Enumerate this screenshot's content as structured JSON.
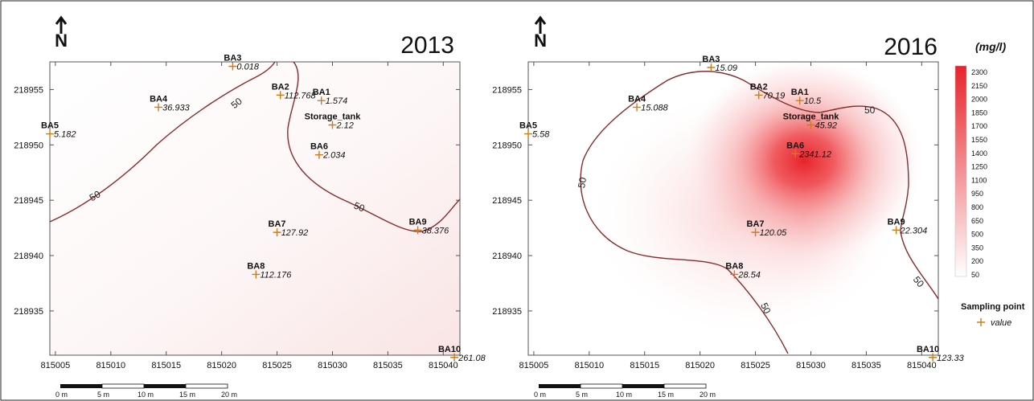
{
  "colors": {
    "contour": "#8b2a2a",
    "marker": "#d07a1a",
    "concentration_high": "#e8232a",
    "concentration_low": "#ffffff"
  },
  "icons": {
    "north_arrow": "north-arrow-icon",
    "marker": "plus-marker-icon"
  },
  "axes": {
    "x_range": [
      815004.5,
      815041.5
    ],
    "y_range": [
      218931,
      218957.5
    ],
    "x_ticks": [
      "815005",
      "815010",
      "815015",
      "815020",
      "815025",
      "815030",
      "815035",
      "815040"
    ],
    "y_ticks": [
      "218935",
      "218940",
      "218945",
      "218950",
      "218955"
    ]
  },
  "scale_bar": {
    "labels": [
      "0 m",
      "5 m",
      "10 m",
      "15 m",
      "20 m"
    ]
  },
  "maps": [
    {
      "year": "2013",
      "points": [
        {
          "name": "BA1",
          "value": "1.574",
          "x": 815029,
          "y": 218954.0
        },
        {
          "name": "BA2",
          "value": "112.768",
          "x": 815025.3,
          "y": 218954.5
        },
        {
          "name": "BA3",
          "value": "0.018",
          "x": 815021.0,
          "y": 218957.1
        },
        {
          "name": "BA4",
          "value": "36.933",
          "x": 815014.3,
          "y": 218953.4
        },
        {
          "name": "BA5",
          "value": "5.182",
          "x": 815004.5,
          "y": 218951.0
        },
        {
          "name": "Storage_tank",
          "value": "2.12",
          "x": 815030.0,
          "y": 218951.8
        },
        {
          "name": "BA6",
          "value": "2.034",
          "x": 815028.8,
          "y": 218949.1
        },
        {
          "name": "BA7",
          "value": "127.92",
          "x": 815025.0,
          "y": 218942.1
        },
        {
          "name": "BA8",
          "value": "112.176",
          "x": 815023.1,
          "y": 218938.3
        },
        {
          "name": "BA9",
          "value": "38.376",
          "x": 815037.7,
          "y": 218942.3
        },
        {
          "name": "BA10",
          "value": "261.08",
          "x": 815041.0,
          "y": 218930.8
        }
      ],
      "contour_labels": [
        "50",
        "50",
        "50"
      ]
    },
    {
      "year": "2016",
      "points": [
        {
          "name": "BA1",
          "value": "10.5",
          "x": 815029,
          "y": 218954.0
        },
        {
          "name": "BA2",
          "value": "70.19",
          "x": 815025.3,
          "y": 218954.5
        },
        {
          "name": "BA3",
          "value": "15.09",
          "x": 815021.0,
          "y": 218957.0
        },
        {
          "name": "BA4",
          "value": "15.088",
          "x": 815014.3,
          "y": 218953.4
        },
        {
          "name": "BA5",
          "value": "5.58",
          "x": 815004.5,
          "y": 218951.0
        },
        {
          "name": "Storage_tank",
          "value": "45.92",
          "x": 815030.0,
          "y": 218951.8
        },
        {
          "name": "BA6",
          "value": "2341.12",
          "x": 815028.6,
          "y": 218949.2
        },
        {
          "name": "BA7",
          "value": "120.05",
          "x": 815025.0,
          "y": 218942.1
        },
        {
          "name": "BA8",
          "value": "28.54",
          "x": 815023.1,
          "y": 218938.3
        },
        {
          "name": "BA9",
          "value": "22.304",
          "x": 815037.7,
          "y": 218942.3
        },
        {
          "name": "BA10",
          "value": "123.33",
          "x": 815041.0,
          "y": 218930.8
        }
      ],
      "contour_labels": [
        "50",
        "50",
        "50",
        "50"
      ]
    }
  ],
  "legend": {
    "unit": "(mg/l)",
    "levels": [
      "2300",
      "2150",
      "2000",
      "1850",
      "1700",
      "1550",
      "1400",
      "1250",
      "1100",
      "950",
      "800",
      "650",
      "500",
      "350",
      "200",
      "50"
    ],
    "sampling_title": "Sampling point",
    "sampling_value": "value"
  },
  "north_label": "N"
}
